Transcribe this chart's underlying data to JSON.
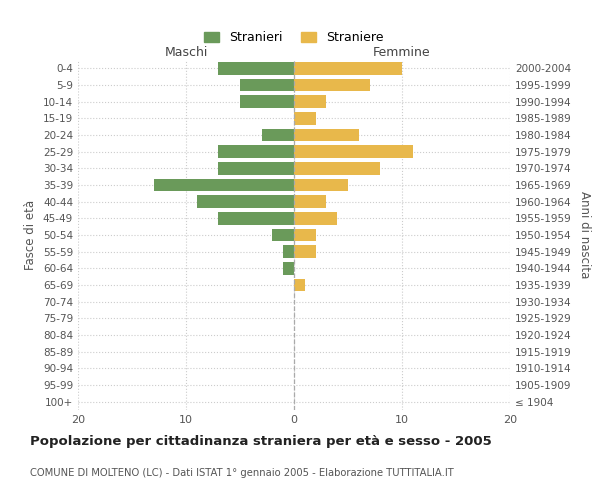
{
  "age_groups": [
    "100+",
    "95-99",
    "90-94",
    "85-89",
    "80-84",
    "75-79",
    "70-74",
    "65-69",
    "60-64",
    "55-59",
    "50-54",
    "45-49",
    "40-44",
    "35-39",
    "30-34",
    "25-29",
    "20-24",
    "15-19",
    "10-14",
    "5-9",
    "0-4"
  ],
  "birth_years": [
    "≤ 1904",
    "1905-1909",
    "1910-1914",
    "1915-1919",
    "1920-1924",
    "1925-1929",
    "1930-1934",
    "1935-1939",
    "1940-1944",
    "1945-1949",
    "1950-1954",
    "1955-1959",
    "1960-1964",
    "1965-1969",
    "1970-1974",
    "1975-1979",
    "1980-1984",
    "1985-1989",
    "1990-1994",
    "1995-1999",
    "2000-2004"
  ],
  "maschi": [
    0,
    0,
    0,
    0,
    0,
    0,
    0,
    0,
    1,
    1,
    2,
    7,
    9,
    13,
    7,
    7,
    3,
    0,
    5,
    5,
    7
  ],
  "femmine": [
    0,
    0,
    0,
    0,
    0,
    0,
    0,
    1,
    0,
    2,
    2,
    4,
    3,
    5,
    8,
    11,
    6,
    2,
    3,
    7,
    10
  ],
  "maschi_color": "#6a9a5a",
  "femmine_color": "#e8b84b",
  "title": "Popolazione per cittadinanza straniera per età e sesso - 2005",
  "subtitle": "COMUNE DI MOLTENO (LC) - Dati ISTAT 1° gennaio 2005 - Elaborazione TUTTITALIA.IT",
  "xlabel_left": "Maschi",
  "xlabel_right": "Femmine",
  "ylabel_left": "Fasce di età",
  "ylabel_right": "Anni di nascita",
  "legend_maschi": "Stranieri",
  "legend_femmine": "Straniere",
  "xlim": 20,
  "background_color": "#ffffff",
  "grid_color": "#cccccc"
}
